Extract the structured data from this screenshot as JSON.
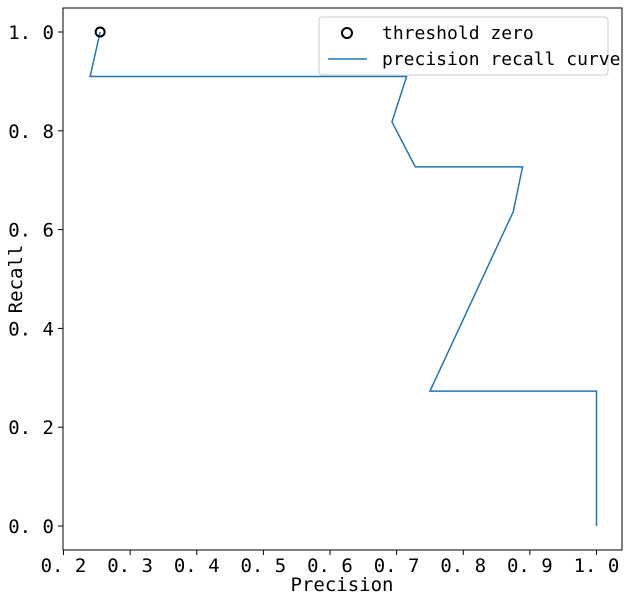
{
  "chart_data": {
    "type": "line",
    "xlabel": "Precision",
    "ylabel": "Recall",
    "xlim": [
      0.2,
      1.04
    ],
    "ylim": [
      -0.05,
      1.05
    ],
    "x_ticks": [
      0.2,
      0.3,
      0.4,
      0.5,
      0.6,
      0.7,
      0.8,
      0.9,
      1.0
    ],
    "x_tick_labels": [
      "0. 2",
      "0. 3",
      "0. 4",
      "0. 5",
      "0. 6",
      "0. 7",
      "0. 8",
      "0. 9",
      "1. 0"
    ],
    "y_ticks": [
      0.0,
      0.2,
      0.4,
      0.6,
      0.8,
      1.0
    ],
    "y_tick_labels": [
      "0. 0",
      "0. 2",
      "0. 4",
      "0. 6",
      "0. 8",
      "1. 0"
    ],
    "grid": false,
    "legend_position": "top-right",
    "series": [
      {
        "name": "precision recall curve",
        "kind": "line",
        "color": "#1f77b4",
        "points": [
          [
            0.255,
            1.0
          ],
          [
            0.24,
            0.91
          ],
          [
            0.715,
            0.91
          ],
          [
            0.693,
            0.818
          ],
          [
            0.728,
            0.727
          ],
          [
            0.889,
            0.727
          ],
          [
            0.875,
            0.636
          ],
          [
            0.75,
            0.273
          ],
          [
            1.0,
            0.273
          ],
          [
            1.0,
            0.0
          ]
        ]
      },
      {
        "name": "threshold zero",
        "kind": "marker",
        "marker": "open-circle",
        "color": "#000000",
        "points": [
          [
            0.255,
            1.0
          ]
        ]
      }
    ]
  }
}
